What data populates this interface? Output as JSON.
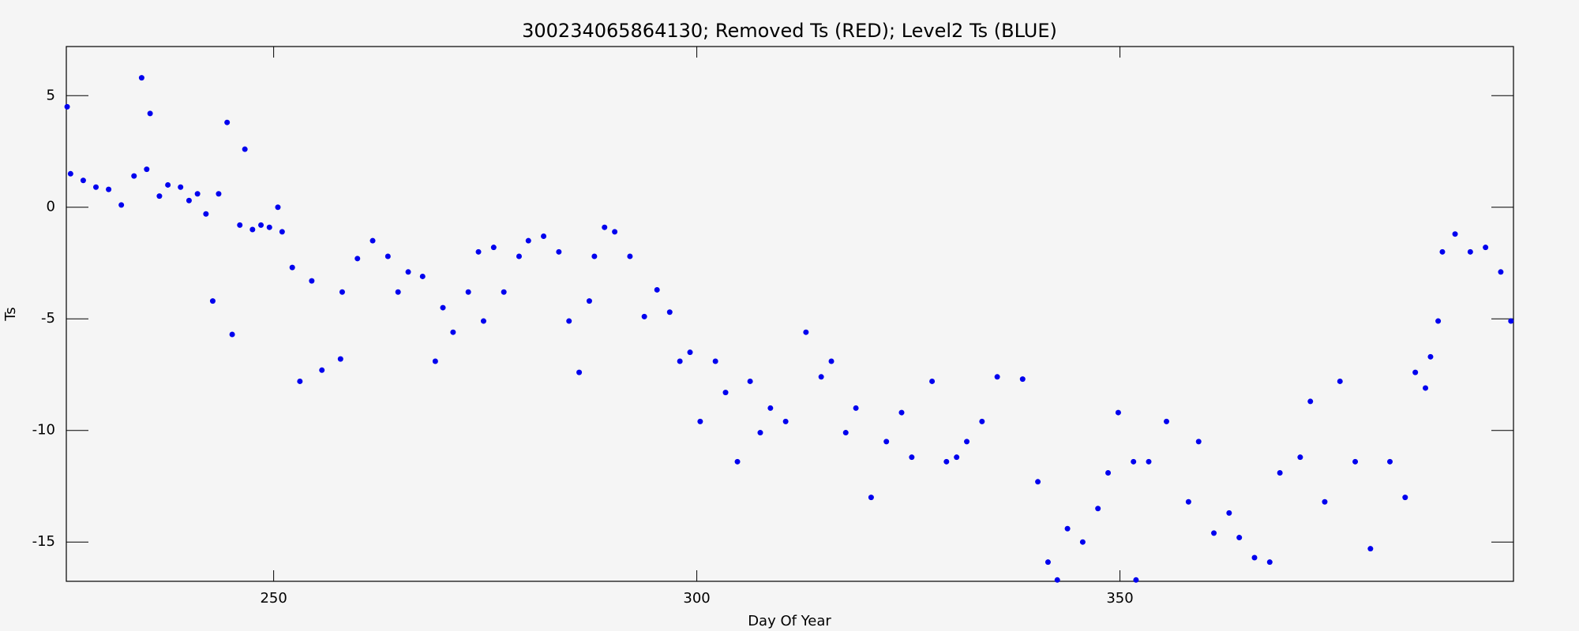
{
  "chart_data": {
    "type": "scatter",
    "title": "300234065864130; Removed Ts (RED); Level2 Ts (BLUE)",
    "x_label": "Day Of Year",
    "y_label": "Ts",
    "xlim": [
      225.5,
      396.5
    ],
    "ylim": [
      -16.76,
      7.2
    ],
    "xticks": [
      250,
      300,
      350
    ],
    "yticks": [
      5,
      0,
      -5,
      -10,
      -15
    ],
    "series": [
      {
        "name": "Level2 Ts",
        "color": "#0000ee",
        "x": [
          225.6,
          226,
          227.5,
          229,
          230.5,
          232,
          233.5,
          234.4,
          235,
          235.4,
          236.5,
          237.5,
          239,
          240,
          241,
          242,
          242.8,
          243.5,
          244.5,
          245.1,
          246,
          246.6,
          247.5,
          248.5,
          249.5,
          250.5,
          251,
          252.2,
          253.1,
          254.5,
          255.7,
          257.9,
          258.1,
          259.9,
          261.7,
          263.5,
          264.7,
          265.9,
          267.6,
          269.1,
          270,
          271.2,
          273,
          274.2,
          274.8,
          276,
          277.2,
          279,
          280.1,
          281.9,
          283.7,
          284.9,
          286.1,
          287.3,
          287.9,
          289.1,
          290.3,
          292.1,
          293.8,
          295.3,
          296.8,
          298,
          299.2,
          300.4,
          302.2,
          303.4,
          304.8,
          306.3,
          307.5,
          308.7,
          310.5,
          312.9,
          314.7,
          315.9,
          317.6,
          318.8,
          320.6,
          322.4,
          324.2,
          325.4,
          327.8,
          329.5,
          330.7,
          331.9,
          333.7,
          335.5,
          338.5,
          340.3,
          341.5,
          342.6,
          343.8,
          345.6,
          347.4,
          348.6,
          349.8,
          351.6,
          351.9,
          353.4,
          355.5,
          358.1,
          359.3,
          361.1,
          362.9,
          364.1,
          365.9,
          367.7,
          368.9,
          371.3,
          372.5,
          374.2,
          376,
          377.8,
          379.6,
          381.9,
          383.7,
          384.9,
          386.1,
          386.7,
          387.6,
          388.1,
          389.6,
          391.4,
          393.2,
          395,
          396.2
        ],
        "values": [
          4.5,
          1.5,
          1.2,
          0.9,
          0.8,
          0.1,
          1.4,
          5.8,
          1.7,
          4.2,
          0.5,
          1.0,
          0.9,
          0.3,
          0.6,
          -0.3,
          -4.2,
          0.6,
          3.8,
          -5.7,
          -0.8,
          2.6,
          -1.0,
          -0.8,
          -0.9,
          0.0,
          -1.1,
          -2.7,
          -7.8,
          -3.3,
          -7.3,
          -6.8,
          -3.8,
          -2.3,
          -1.5,
          -2.2,
          -3.8,
          -2.9,
          -3.1,
          -6.9,
          -4.5,
          -5.6,
          -3.8,
          -2.0,
          -5.1,
          -1.8,
          -3.8,
          -2.2,
          -1.5,
          -1.3,
          -2.0,
          -5.1,
          -7.4,
          -4.2,
          -2.2,
          -0.9,
          -1.1,
          -2.2,
          -4.9,
          -3.7,
          -4.7,
          -6.9,
          -6.5,
          -9.6,
          -6.9,
          -8.3,
          -11.4,
          -7.8,
          -10.1,
          -9.0,
          -9.6,
          -5.6,
          -7.6,
          -6.9,
          -10.1,
          -9.0,
          -13.0,
          -10.5,
          -9.2,
          -11.2,
          -7.8,
          -11.4,
          -11.2,
          -10.5,
          -9.6,
          -7.6,
          -7.7,
          -12.3,
          -15.9,
          -16.7,
          -14.4,
          -15.0,
          -13.5,
          -11.9,
          -9.2,
          -11.4,
          -16.7,
          -11.4,
          -9.6,
          -13.2,
          -10.5,
          -14.6,
          -13.7,
          -14.8,
          -15.7,
          -15.9,
          -11.9,
          -11.2,
          -8.7,
          -13.2,
          -7.8,
          -11.4,
          -15.3,
          -11.4,
          -13.0,
          -7.4,
          -8.1,
          -6.7,
          -5.1,
          -2.0,
          -1.2,
          -2.0,
          -1.8,
          -2.9,
          -5.1
        ]
      }
    ]
  }
}
